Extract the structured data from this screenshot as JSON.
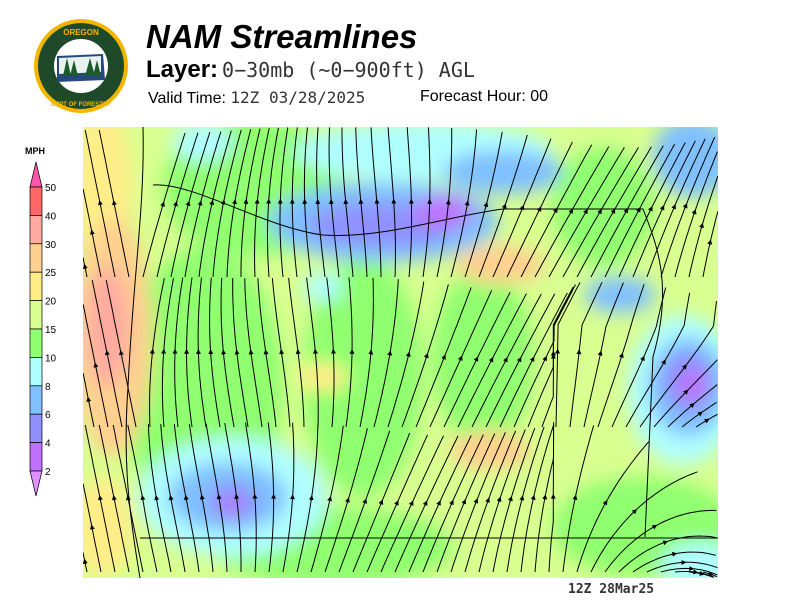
{
  "header": {
    "title": "NAM Streamlines",
    "layer_label": "Layer:",
    "layer_value": "0−30mb (~0−900ft) AGL",
    "valid_label": "Valid Time:",
    "valid_value": "12Z 03/28/2025",
    "forecast_label": "Forecast Hour:",
    "forecast_value": "00"
  },
  "logo": {
    "text_top": "OREGON",
    "text_bottom": "DEPARTMENT OF FORESTRY"
  },
  "legend": {
    "unit": "MPH",
    "ticks": [
      "50",
      "40",
      "30",
      "25",
      "20",
      "15",
      "10",
      "8",
      "6",
      "4",
      "2"
    ],
    "colors": [
      "#ff55aa",
      "#ff6666",
      "#ffaaa0",
      "#ffd090",
      "#ffee88",
      "#d8ff90",
      "#90ff70",
      "#b0ffff",
      "#80c0ff",
      "#9090ff",
      "#c070ff",
      "#e090ff"
    ]
  },
  "map": {
    "stamp": "12Z 28Mar25",
    "field": "wind speed with streamlines",
    "region": "Oregon"
  }
}
